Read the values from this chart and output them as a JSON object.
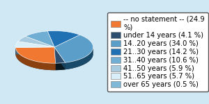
{
  "labels": [
    "-- no statement -- (24.9\n%)",
    "under 14 years (4.1 %)",
    "14..20 years (34.0 %)",
    "21..30 years (14.2 %)",
    "31..40 years (10.6 %)",
    "41..50 years (5.9 %)",
    "51..65 years (5.7 %)",
    "over 65 years (0.5 %)"
  ],
  "values": [
    24.9,
    4.1,
    34.0,
    14.2,
    10.6,
    5.9,
    5.7,
    0.5
  ],
  "colors": [
    "#F07830",
    "#2E4E70",
    "#5B9EC9",
    "#2070B4",
    "#70AED4",
    "#A8CBE0",
    "#D8EEF8",
    "#80B8D8"
  ],
  "dark_colors": [
    "#8B4010",
    "#0A1820",
    "#1A4A6A",
    "#083860",
    "#285878",
    "#486880",
    "#506878",
    "#305870"
  ],
  "background_color": "#D0E8F4",
  "startangle": 182,
  "yscale": 0.42,
  "depth": 0.18,
  "legend_fontsize": 7.2,
  "figsize": [
    3.0,
    1.5
  ],
  "dpi": 100
}
